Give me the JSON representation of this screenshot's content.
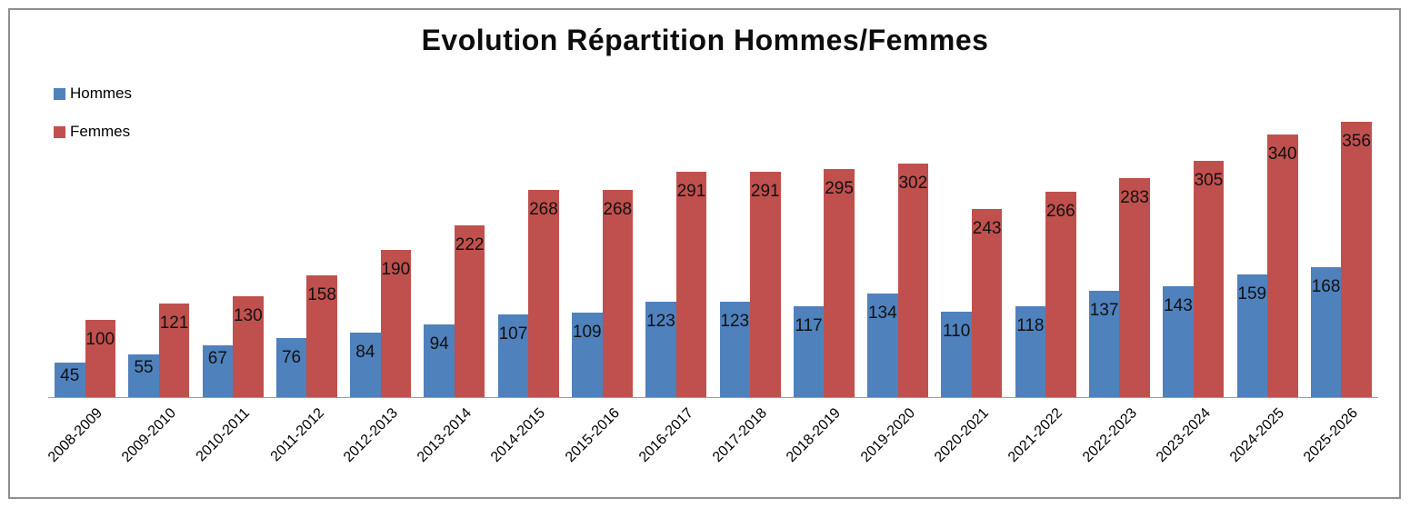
{
  "chart_data": {
    "type": "bar",
    "title": "Evolution Répartition Hommes/Femmes",
    "categories": [
      "2008-2009",
      "2009-2010",
      "2010-2011",
      "2011-2012",
      "2012-2013",
      "2013-2014",
      "2014-2015",
      "2015-2016",
      "2016-2017",
      "2017-2018",
      "2018-2019",
      "2019-2020",
      "2020-2021",
      "2021-2022",
      "2022-2023",
      "2023-2024",
      "2024-2025",
      "2025-2026"
    ],
    "series": [
      {
        "name": "Hommes",
        "color": "#4F81BD",
        "values": [
          45,
          55,
          67,
          76,
          84,
          94,
          107,
          109,
          123,
          123,
          117,
          134,
          110,
          118,
          137,
          143,
          159,
          168
        ]
      },
      {
        "name": "Femmes",
        "color": "#C0504D",
        "values": [
          100,
          121,
          130,
          158,
          190,
          222,
          268,
          268,
          291,
          291,
          295,
          302,
          243,
          266,
          283,
          305,
          340,
          356
        ]
      }
    ],
    "xlabel": "",
    "ylabel": "",
    "ylim": [
      0,
      380
    ],
    "grid": false,
    "y_axis_labels_visible": false,
    "legend_position": "top-left",
    "data_labels": "inside-end",
    "axis_line_color": "#9d9d9d",
    "frame_border_color": "#8f8f8f"
  }
}
